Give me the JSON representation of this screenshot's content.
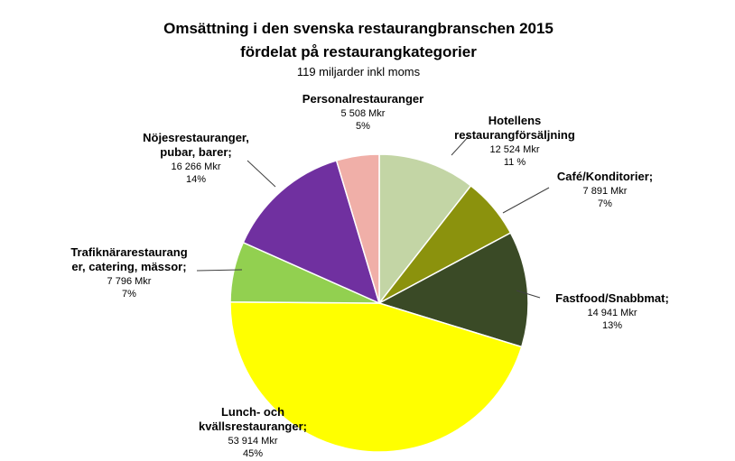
{
  "chart_data": {
    "type": "pie",
    "title": "Omsättning i den svenska restaurangbranschen 2015",
    "title_line2": "fördelat på restaurangkategorier",
    "subtitle": "119 miljarder inkl moms",
    "legend": "none",
    "slices": [
      {
        "label_lines": [
          "Hotellens",
          "restaurangförsäljning"
        ],
        "amount_text": "12 524 Mkr",
        "percent_text": "11 %",
        "value": 12524,
        "color": "#c3d5a5"
      },
      {
        "label_lines": [
          "Café/Konditorier;"
        ],
        "amount_text": "7 891 Mkr",
        "percent_text": "7%",
        "value": 7891,
        "color": "#8b920d"
      },
      {
        "label_lines": [
          "Fastfood/Snabbmat;"
        ],
        "amount_text": "14 941 Mkr",
        "percent_text": "13%",
        "value": 14941,
        "color": "#3a4a26"
      },
      {
        "label_lines": [
          "Lunch- och",
          "kvällsrestauranger;"
        ],
        "amount_text": "53 914 Mkr",
        "percent_text": "45%",
        "value": 53914,
        "color": "#ffff00"
      },
      {
        "label_lines": [
          "Trafiknärarestaurang",
          "er, catering, mässor;"
        ],
        "amount_text": "7 796 Mkr",
        "percent_text": "7%",
        "value": 7796,
        "color": "#92d050"
      },
      {
        "label_lines": [
          "Nöjesrestauranger,",
          "pubar, barer;"
        ],
        "amount_text": "16 266 Mkr",
        "percent_text": "14%",
        "value": 16266,
        "color": "#7030a0"
      },
      {
        "label_lines": [
          "Personalrestauranger"
        ],
        "amount_text": "5 508 Mkr",
        "percent_text": "5%",
        "value": 5508,
        "color": "#f0afa8"
      }
    ]
  }
}
